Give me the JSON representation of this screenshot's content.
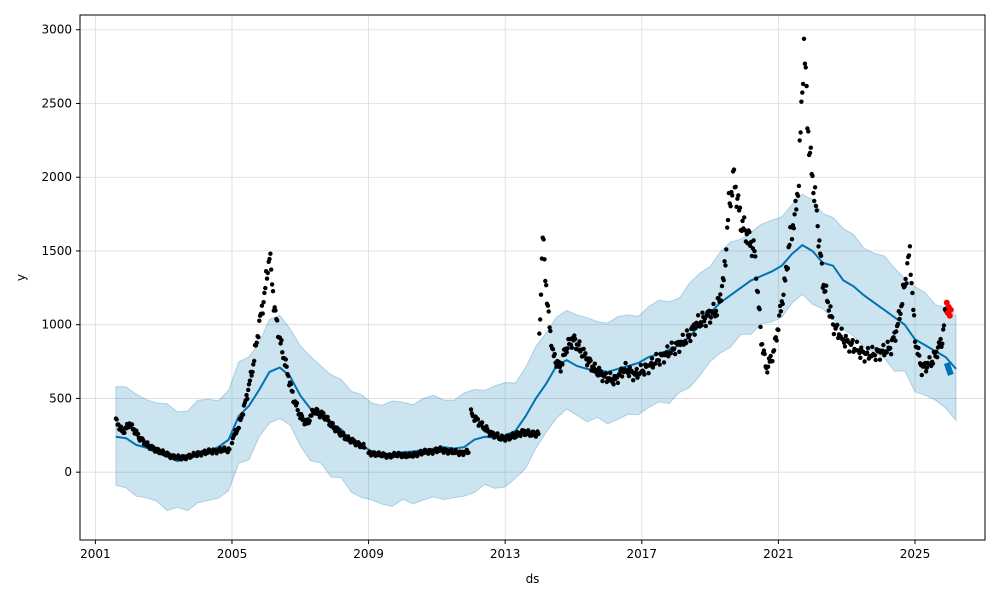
{
  "chart_data": {
    "type": "line",
    "title": "",
    "xlabel": "ds",
    "ylabel": "y",
    "xlim": [
      2000.55,
      2027.05
    ],
    "ylim": [
      -460,
      3100
    ],
    "grid": true,
    "x_ticks": [
      {
        "value": 2001,
        "label": "2001"
      },
      {
        "value": 2005,
        "label": "2005"
      },
      {
        "value": 2009,
        "label": "2009"
      },
      {
        "value": 2013,
        "label": "2013"
      },
      {
        "value": 2017,
        "label": "2017"
      },
      {
        "value": 2021,
        "label": "2021"
      },
      {
        "value": 2025,
        "label": "2025"
      }
    ],
    "y_ticks": [
      {
        "value": 0,
        "label": "0"
      },
      {
        "value": 500,
        "label": "500"
      },
      {
        "value": 1000,
        "label": "1000"
      },
      {
        "value": 1500,
        "label": "1500"
      },
      {
        "value": 2000,
        "label": "2000"
      },
      {
        "value": 2500,
        "label": "2500"
      },
      {
        "value": 3000,
        "label": "3000"
      }
    ],
    "colors": {
      "forecast": "#0072B2",
      "interval": "#0072B2",
      "observed": "#000000",
      "recent": "#ff0000",
      "grid": "#dcdcdc"
    },
    "forecast": {
      "x": [
        2001.6,
        2001.9,
        2002.2,
        2002.5,
        2002.8,
        2003.1,
        2003.4,
        2003.7,
        2004.0,
        2004.3,
        2004.6,
        2004.9,
        2005.2,
        2005.5,
        2005.8,
        2006.1,
        2006.4,
        2006.7,
        2007.0,
        2007.3,
        2007.6,
        2007.9,
        2008.2,
        2008.5,
        2008.8,
        2009.1,
        2009.4,
        2009.7,
        2010.0,
        2010.3,
        2010.6,
        2010.9,
        2011.2,
        2011.5,
        2011.8,
        2012.1,
        2012.4,
        2012.7,
        2013.0,
        2013.3,
        2013.6,
        2013.9,
        2014.2,
        2014.5,
        2014.8,
        2015.1,
        2015.4,
        2015.7,
        2016.0,
        2016.3,
        2016.6,
        2016.9,
        2017.2,
        2017.5,
        2017.8,
        2018.1,
        2018.4,
        2018.7,
        2019.0,
        2019.3,
        2019.6,
        2019.9,
        2020.2,
        2020.5,
        2020.8,
        2021.1,
        2021.4,
        2021.7,
        2022.0,
        2022.3,
        2022.6,
        2022.9,
        2023.2,
        2023.5,
        2023.8,
        2024.1,
        2024.4,
        2024.7,
        2025.0,
        2025.3,
        2025.6,
        2025.9,
        2026.2
      ],
      "y": [
        240,
        230,
        185,
        165,
        130,
        105,
        75,
        95,
        130,
        140,
        170,
        220,
        380,
        450,
        560,
        680,
        710,
        650,
        520,
        430,
        380,
        330,
        290,
        200,
        180,
        140,
        120,
        125,
        135,
        140,
        150,
        160,
        170,
        160,
        170,
        220,
        240,
        235,
        250,
        280,
        380,
        500,
        600,
        720,
        760,
        720,
        700,
        690,
        680,
        700,
        720,
        740,
        780,
        800,
        830,
        860,
        920,
        1000,
        1080,
        1150,
        1200,
        1250,
        1300,
        1330,
        1360,
        1400,
        1480,
        1540,
        1500,
        1420,
        1400,
        1300,
        1260,
        1200,
        1150,
        1100,
        1050,
        1000,
        900,
        860,
        820,
        780,
        700
      ]
    },
    "interval_width": 340,
    "observed_segments": [
      {
        "x": [
          2001.6,
          2001.8,
          2002.0,
          2002.3,
          2002.6,
          2002.9,
          2003.2,
          2003.5,
          2003.8,
          2004.1,
          2004.4,
          2004.7,
          2004.95
        ],
        "y": [
          350,
          270,
          330,
          230,
          170,
          140,
          110,
          95,
          110,
          130,
          140,
          150,
          150
        ]
      },
      {
        "x": [
          2005.0,
          2005.2,
          2005.4,
          2005.6,
          2005.8,
          2005.95,
          2006.1,
          2006.25,
          2006.4,
          2006.6,
          2006.8,
          2007.0,
          2007.2,
          2007.4,
          2007.7,
          2008.0,
          2008.3,
          2008.6,
          2008.9
        ],
        "y": [
          220,
          310,
          480,
          700,
          1000,
          1200,
          1480,
          1100,
          900,
          700,
          500,
          380,
          330,
          420,
          380,
          300,
          240,
          200,
          170
        ]
      },
      {
        "x": [
          2009.0,
          2009.3,
          2009.6,
          2009.9,
          2010.2,
          2010.5,
          2010.8,
          2011.1,
          2011.4,
          2011.7,
          2011.95
        ],
        "y": [
          130,
          120,
          110,
          120,
          110,
          130,
          140,
          150,
          140,
          130,
          140
        ]
      },
      {
        "x": [
          2012.0,
          2012.3,
          2012.6,
          2012.9,
          2013.2,
          2013.5,
          2013.8,
          2014.0
        ],
        "y": [
          400,
          320,
          260,
          230,
          240,
          270,
          260,
          260
        ]
      },
      {
        "x": [
          2014.0,
          2014.1,
          2014.25,
          2014.4,
          2014.6,
          2014.8,
          2015.0,
          2015.3,
          2015.6,
          2015.9,
          2016.2,
          2016.5,
          2016.8,
          2017.1,
          2017.4,
          2017.7,
          2018.0,
          2018.3,
          2018.6,
          2018.9,
          2019.2,
          2019.4,
          2019.55,
          2019.7,
          2019.9,
          2020.1,
          2020.3,
          2020.5,
          2020.65,
          2020.85,
          2021.0,
          2021.2,
          2021.35,
          2021.5,
          2021.6,
          2021.75,
          2021.9,
          2022.1,
          2022.3,
          2022.6,
          2022.9,
          2023.2,
          2023.5,
          2023.8,
          2024.1,
          2024.3,
          2024.5,
          2024.65,
          2024.85,
          2025.0,
          2025.2,
          2025.5,
          2025.8,
          2025.95
        ],
        "y": [
          900,
          1600,
          1100,
          800,
          700,
          850,
          900,
          800,
          700,
          650,
          620,
          700,
          660,
          700,
          750,
          800,
          850,
          900,
          1000,
          1050,
          1100,
          1300,
          1800,
          2000,
          1700,
          1600,
          1500,
          900,
          700,
          800,
          1000,
          1300,
          1600,
          1750,
          2000,
          2900,
          2200,
          1800,
          1300,
          1000,
          900,
          850,
          800,
          800,
          820,
          850,
          1000,
          1200,
          1500,
          900,
          700,
          750,
          900,
          1200
        ]
      }
    ],
    "recent": {
      "x": [
        2025.93,
        2025.96,
        2025.99,
        2026.02,
        2026.05
      ],
      "y": [
        1150,
        1080,
        1120,
        1060,
        1100
      ]
    }
  }
}
